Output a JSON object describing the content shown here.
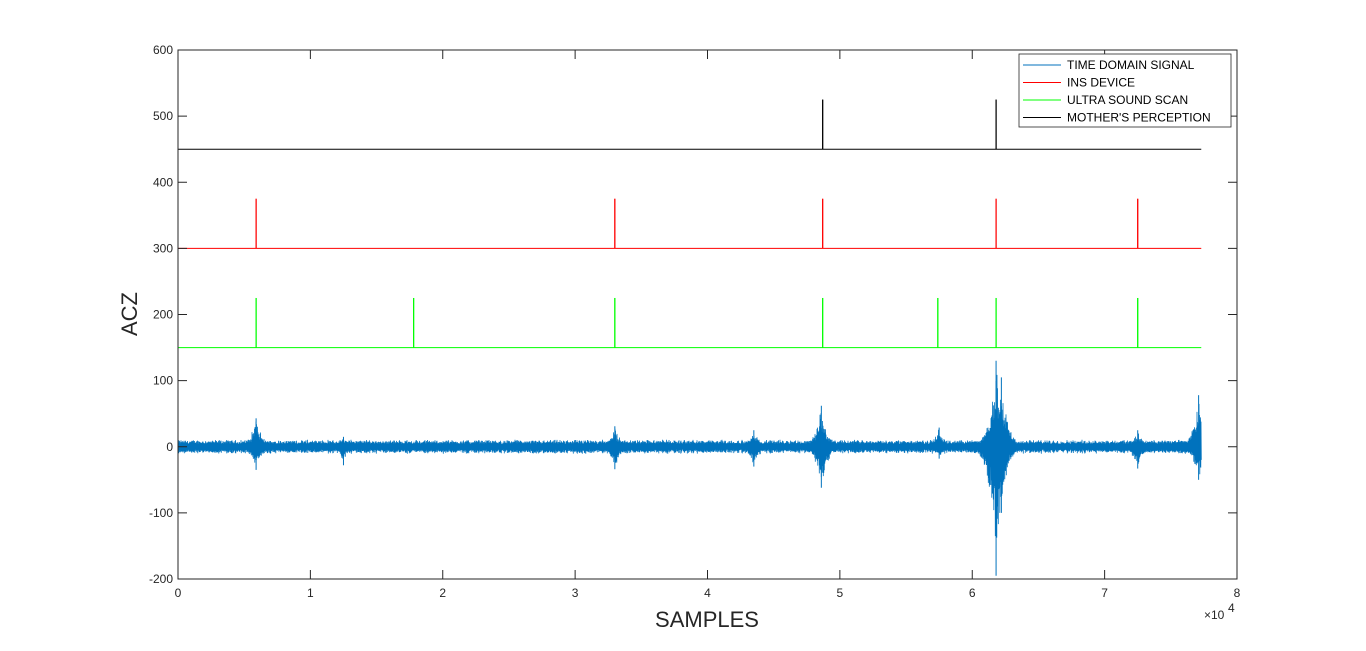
{
  "chart_data": {
    "type": "line",
    "title": "",
    "xlabel": "SAMPLES",
    "ylabel": "ACZ",
    "x_exponent_label": "×10",
    "x_exponent_power": "4",
    "xlim": [
      0,
      80000
    ],
    "ylim": [
      -200,
      600
    ],
    "x_ticks": [
      0,
      10000,
      20000,
      30000,
      40000,
      50000,
      60000,
      70000,
      80000
    ],
    "x_tick_labels": [
      "0",
      "1",
      "2",
      "3",
      "4",
      "5",
      "6",
      "7",
      "8"
    ],
    "y_ticks": [
      -200,
      -100,
      0,
      100,
      200,
      300,
      400,
      500,
      600
    ],
    "y_tick_labels": [
      "-200",
      "-100",
      "0",
      "100",
      "200",
      "300",
      "400",
      "500",
      "600"
    ],
    "grid": false,
    "legend_position": "top-right",
    "x_end": 77300,
    "series": [
      {
        "name": "TIME DOMAIN SIGNAL",
        "color": "#0072BD",
        "kind": "noise",
        "baseline": 0,
        "noise_amplitude": 9,
        "bursts": [
          {
            "x": 5900,
            "max": 43,
            "min": -35
          },
          {
            "x": 12500,
            "max": 15,
            "min": -28
          },
          {
            "x": 33000,
            "max": 31,
            "min": -34
          },
          {
            "x": 43500,
            "max": 25,
            "min": -30
          },
          {
            "x": 48600,
            "max": 62,
            "min": -62
          },
          {
            "x": 57500,
            "max": 29,
            "min": -18
          },
          {
            "x": 61800,
            "max": 130,
            "min": -195
          },
          {
            "x": 62200,
            "max": 105,
            "min": -100
          },
          {
            "x": 72500,
            "max": 25,
            "min": -33
          },
          {
            "x": 77100,
            "max": 78,
            "min": -50
          }
        ]
      },
      {
        "name": "INS DEVICE",
        "color": "#FF0000",
        "kind": "pulse",
        "baseline": 300,
        "peak": 375,
        "pulses": [
          5900,
          33000,
          48700,
          61800,
          72500
        ]
      },
      {
        "name": "ULTRA SOUND SCAN",
        "color": "#00FF00",
        "kind": "pulse",
        "baseline": 150,
        "peak": 225,
        "pulses": [
          5900,
          17800,
          33000,
          48700,
          57400,
          61800,
          72500
        ]
      },
      {
        "name": "MOTHER'S PERCEPTION",
        "color": "#000000",
        "kind": "pulse",
        "baseline": 450,
        "peak": 525,
        "pulses": [
          48700,
          61800
        ]
      }
    ]
  }
}
